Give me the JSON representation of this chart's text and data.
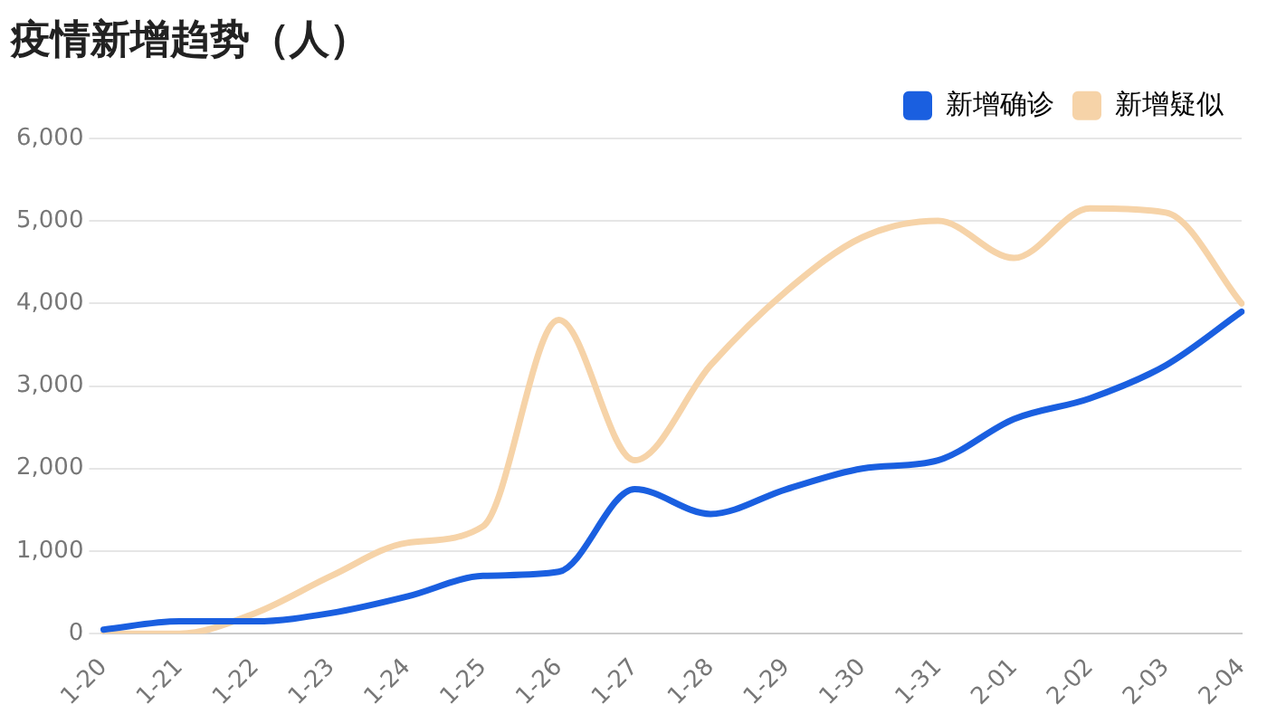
{
  "chart_data": {
    "type": "line",
    "title": "疫情新增趋势（人）",
    "categories": [
      "1-20",
      "1-21",
      "1-22",
      "1-23",
      "1-24",
      "1-25",
      "1-26",
      "1-27",
      "1-28",
      "1-29",
      "1-30",
      "1-31",
      "2-01",
      "2-02",
      "2-03",
      "2-04"
    ],
    "series": [
      {
        "name": "新增确诊",
        "color": "#1a5fe0",
        "values": [
          50,
          150,
          150,
          250,
          450,
          700,
          750,
          1750,
          1450,
          1750,
          2000,
          2100,
          2600,
          2850,
          3250,
          3900
        ]
      },
      {
        "name": "新增疑似",
        "color": "#f6d3a8",
        "values": [
          0,
          0,
          250,
          700,
          1100,
          1300,
          3800,
          2100,
          3250,
          4150,
          4800,
          5000,
          4550,
          5150,
          5100,
          4000
        ]
      }
    ],
    "ylim": [
      0,
      6000
    ],
    "yticks": [
      0,
      {
        "value": 1000,
        "label": "1,000"
      },
      {
        "value": 2000,
        "label": "2,000"
      },
      {
        "value": 3000,
        "label": "3,000"
      },
      {
        "value": 4000,
        "label": "4,000"
      },
      {
        "value": 5000,
        "label": "5,000"
      },
      {
        "value": 6000,
        "label": "6,000"
      }
    ],
    "grid": "y",
    "legend": "top right",
    "marker": "none",
    "line_style": "solid"
  }
}
